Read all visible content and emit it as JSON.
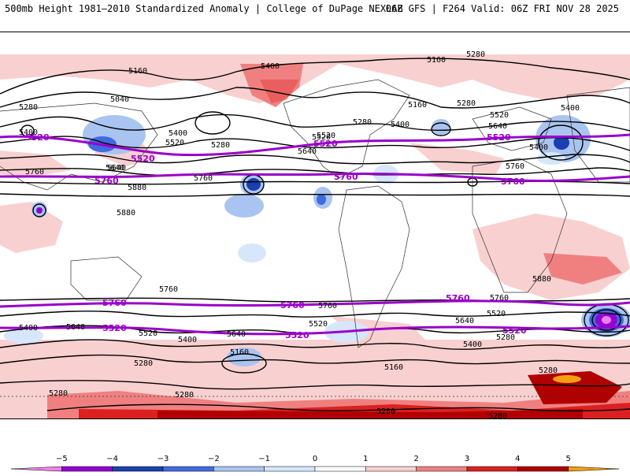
{
  "header": {
    "left_title": "500mb Height 1981–2010 Standardized Anomaly | College of DuPage NEXLAB",
    "right_title": "06Z GFS | F264 Valid: 06Z FRI NOV 28 2025"
  },
  "contours": {
    "black_labels": [
      "5160",
      "5280",
      "5040",
      "5280",
      "5400",
      "5520",
      "5640",
      "5160",
      "5400",
      "5520",
      "5280",
      "5760",
      "5880",
      "5760",
      "5880",
      "5400",
      "5160",
      "5280",
      "5520",
      "5640",
      "5400",
      "5640",
      "5400",
      "5520",
      "5640",
      "5760",
      "5880",
      "5760",
      "5760",
      "5640",
      "5400",
      "5520",
      "5520",
      "5640",
      "5400",
      "5280",
      "5160",
      "5280",
      "5280",
      "5640",
      "5400",
      "5520",
      "5280",
      "5280",
      "5760",
      "5400",
      "5280",
      "5160",
      "5280",
      "5280"
    ],
    "purple_labels": [
      "5520",
      "5760",
      "5520",
      "5760",
      "5520",
      "5760",
      "5760",
      "5760",
      "5520",
      "5520",
      "5760",
      "5520",
      "5520"
    ]
  },
  "colorbar": {
    "ticks": [
      "−5",
      "−4",
      "−3",
      "−2",
      "−1",
      "0",
      "1",
      "2",
      "3",
      "4",
      "5"
    ],
    "colors": [
      "#ee82ee",
      "#9400d3",
      "#1a3fb0",
      "#4169e1",
      "#a9c4f0",
      "#d6e6fb",
      "#ffffff",
      "#f8d0d0",
      "#f08080",
      "#dc2020",
      "#b00000",
      "#f5a010"
    ]
  }
}
